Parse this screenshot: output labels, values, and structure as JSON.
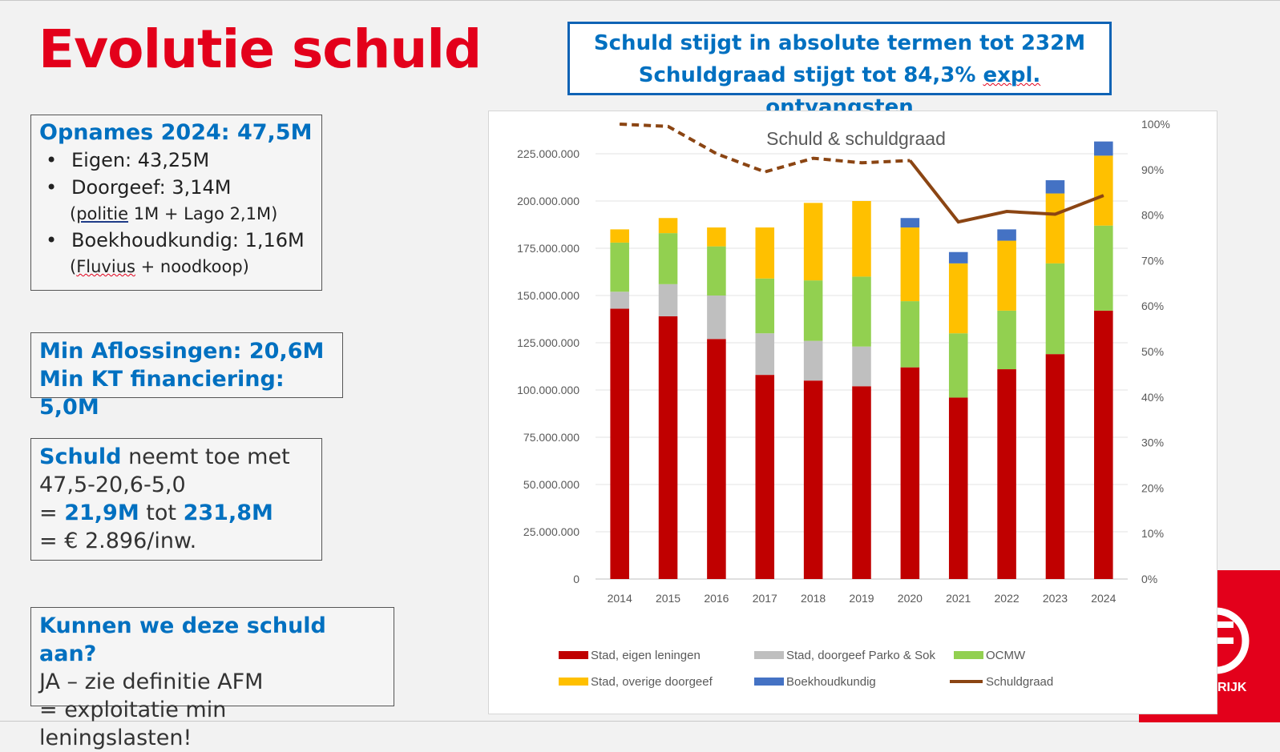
{
  "slide": {
    "title": "Evolutie schuld",
    "headline": {
      "line1": "Schuld stijgt in absolute termen tot 232M",
      "line2_pre": "Schuldgraad stijgt tot 84,3% ",
      "line2_expl": "expl.",
      "line2_mid": " ",
      "line2_ontv": "ontvangsten"
    },
    "opnames": {
      "title": "Opnames 2024: 47,5M",
      "eigen": "Eigen: 43,25M",
      "doorgeef": "Doorgeef: 3,14M",
      "doorgeef_sub_open": "(",
      "doorgeef_sub_politie": "politie",
      "doorgeef_sub_rest": " 1M + Lago 2,1M)",
      "boekhoud": "Boekhoudkundig: 1,16M",
      "boekhoud_sub_open": "(",
      "boekhoud_sub_fluvius": "Fluvius",
      "boekhoud_sub_rest": " + noodkoop)"
    },
    "aflossing": {
      "line1": "Min Aflossingen: 20,6M",
      "line2": "Min KT financiering: 5,0M"
    },
    "schuld": {
      "word": "Schuld",
      "rest": " neemt toe met",
      "line2": "47,5-20,6-5,0",
      "line3_eq": "= ",
      "line3_a": "21,9M",
      "line3_tot": " tot ",
      "line3_b": "231,8M",
      "line4": "=  € 2.896/inw."
    },
    "afm": {
      "title": "Kunnen we deze schuld aan?",
      "line2": "JA – zie definitie AFM",
      "line3": "= exploitatie min leningslasten!"
    },
    "logo_text": "RIJK"
  },
  "chart_data": {
    "type": "bar",
    "stacked": true,
    "title": "Schuld & schuldgraad",
    "categories": [
      "2014",
      "2015",
      "2016",
      "2017",
      "2018",
      "2019",
      "2020",
      "2021",
      "2022",
      "2023",
      "2024"
    ],
    "y_left": {
      "min": 0,
      "max": 225000000,
      "step": 25000000,
      "tick_labels": [
        "0",
        "25.000.000",
        "50.000.000",
        "75.000.000",
        "100.000.000",
        "125.000.000",
        "150.000.000",
        "175.000.000",
        "200.000.000",
        "225.000.000"
      ]
    },
    "y_right": {
      "min": 0,
      "max": 1,
      "step": 0.1,
      "tick_labels": [
        "0%",
        "10%",
        "20%",
        "30%",
        "40%",
        "50%",
        "60%",
        "70%",
        "80%",
        "90%",
        "100%"
      ]
    },
    "series": [
      {
        "name": "Stad, eigen leningen",
        "color": "#c00000",
        "values": [
          143000000,
          139000000,
          127000000,
          108000000,
          105000000,
          102000000,
          112000000,
          96000000,
          111000000,
          119000000,
          142000000
        ]
      },
      {
        "name": "Stad, doorgeef Parko & Sok",
        "color": "#bfbfbf",
        "values": [
          9000000,
          17000000,
          23000000,
          22000000,
          21000000,
          21000000,
          0,
          0,
          0,
          0,
          0
        ]
      },
      {
        "name": "OCMW",
        "color": "#92d050",
        "values": [
          26000000,
          27000000,
          26000000,
          29000000,
          32000000,
          37000000,
          35000000,
          34000000,
          31000000,
          48000000,
          45000000
        ]
      },
      {
        "name": "Stad, overige doorgeef",
        "color": "#ffc000",
        "values": [
          7000000,
          8000000,
          10000000,
          27000000,
          41000000,
          40000000,
          39000000,
          37000000,
          37000000,
          37000000,
          37000000
        ]
      },
      {
        "name": "Boekhoudkundig",
        "color": "#4472c4",
        "values": [
          0,
          0,
          0,
          0,
          0,
          0,
          5000000,
          6000000,
          6000000,
          7000000,
          7500000
        ]
      }
    ],
    "line_series": {
      "name": "Schuldgraad",
      "color": "#8b4513",
      "axis": "right",
      "dashed_until_index": 6,
      "values": [
        1.0,
        0.995,
        0.935,
        0.895,
        0.925,
        0.915,
        0.92,
        0.785,
        0.808,
        0.802,
        0.843
      ]
    },
    "legend": {
      "placement": "bottom",
      "items": [
        {
          "label": "Stad, eigen leningen",
          "color": "#c00000",
          "kind": "box"
        },
        {
          "label": "Stad, doorgeef Parko & Sok",
          "color": "#bfbfbf",
          "kind": "box"
        },
        {
          "label": "OCMW",
          "color": "#92d050",
          "kind": "box"
        },
        {
          "label": "Stad, overige doorgeef",
          "color": "#ffc000",
          "kind": "box"
        },
        {
          "label": "Boekhoudkundig",
          "color": "#4472c4",
          "kind": "box"
        },
        {
          "label": "Schuldgraad",
          "color": "#8b4513",
          "kind": "line"
        }
      ]
    },
    "gridlines": true
  }
}
